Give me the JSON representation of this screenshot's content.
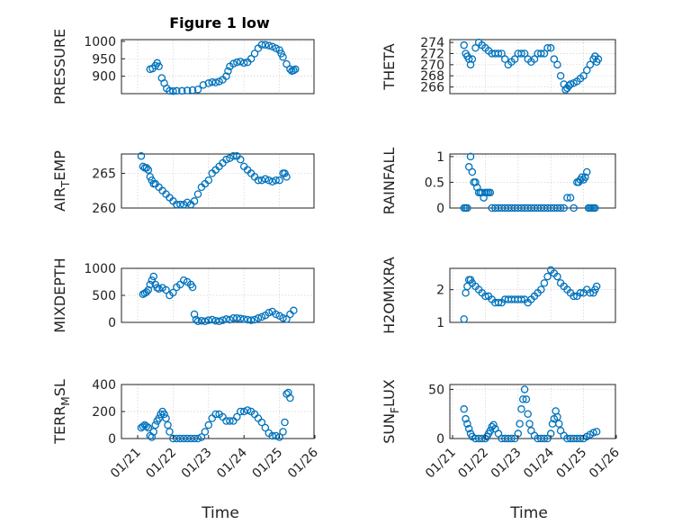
{
  "figure_title": "Figure 1 low",
  "chart_data": [
    {
      "type": "scatter",
      "ylabel": "PRESSURE",
      "ylim": [
        850,
        1005
      ],
      "yticks": [
        "900",
        "950",
        "1000"
      ],
      "x": [
        "01/21",
        "01/22",
        "01/23",
        "01/24",
        "01/25",
        "01/26"
      ],
      "xlim": [
        0,
        5
      ],
      "grid": true,
      "series": [
        {
          "x": [
            0.35,
            0.42,
            0.5,
            0.55,
            0.6,
            0.68,
            0.75,
            0.82,
            0.9,
            1.0,
            1.1,
            1.25,
            1.4,
            1.55,
            1.7,
            1.85,
            2.0,
            2.1,
            2.2,
            2.3,
            2.4,
            2.5,
            2.55,
            2.6,
            2.7,
            2.8,
            2.9,
            3.0,
            3.1,
            3.2,
            3.3,
            3.4,
            3.5,
            3.6,
            3.7,
            3.8,
            3.9,
            4.0,
            4.05,
            4.1,
            4.2,
            4.3,
            4.35,
            4.4,
            4.45
          ],
          "y": [
            920,
            922,
            930,
            938,
            928,
            895,
            880,
            865,
            858,
            857,
            858,
            858,
            859,
            860,
            862,
            875,
            880,
            883,
            882,
            885,
            890,
            900,
            915,
            928,
            936,
            940,
            942,
            938,
            940,
            950,
            965,
            980,
            990,
            990,
            988,
            985,
            980,
            975,
            965,
            955,
            935,
            920,
            915,
            917,
            920
          ]
        }
      ]
    },
    {
      "type": "scatter",
      "ylabel": "THETA",
      "ylim": [
        264.8,
        274.5
      ],
      "yticks": [
        "266",
        "268",
        "270",
        "272",
        "274"
      ],
      "x": [
        "01/21",
        "01/22",
        "01/23",
        "01/24",
        "01/25",
        "01/26"
      ],
      "xlim": [
        0,
        5
      ],
      "grid": true,
      "series": [
        {
          "x": [
            0.35,
            0.4,
            0.45,
            0.5,
            0.55,
            0.6,
            0.7,
            0.8,
            0.9,
            1.0,
            1.1,
            1.2,
            1.3,
            1.4,
            1.5,
            1.6,
            1.7,
            1.8,
            1.9,
            2.0,
            2.1,
            2.2,
            2.3,
            2.4,
            2.5,
            2.6,
            2.7,
            2.8,
            2.9,
            3.0,
            3.1,
            3.2,
            3.3,
            3.4,
            3.45,
            3.5,
            3.55,
            3.6,
            3.7,
            3.8,
            3.9,
            4.0,
            4.1,
            4.2,
            4.3,
            4.35,
            4.4,
            4.45
          ],
          "y": [
            273.5,
            272,
            271.5,
            271,
            270,
            271,
            273,
            274,
            273.5,
            273,
            272.5,
            272,
            272,
            272,
            272,
            271,
            270,
            270.5,
            271,
            272,
            272,
            272,
            271,
            270.5,
            271,
            272,
            272,
            272,
            273,
            273,
            271,
            270,
            268,
            266.5,
            265.5,
            265.8,
            266.2,
            266.5,
            266.7,
            267,
            267.5,
            268,
            269,
            270,
            271,
            271.5,
            270.5,
            271
          ]
        }
      ]
    },
    {
      "type": "scatter",
      "ylabel": "AIR_TEMP",
      "ylim": [
        260,
        267.8
      ],
      "yticks": [
        "260",
        "265"
      ],
      "x": [
        "01/21",
        "01/22",
        "01/23",
        "01/24",
        "01/25",
        "01/26"
      ],
      "xlim": [
        0,
        5
      ],
      "grid": true,
      "series": [
        {
          "x": [
            0.1,
            0.15,
            0.2,
            0.25,
            0.3,
            0.35,
            0.4,
            0.45,
            0.5,
            0.6,
            0.7,
            0.8,
            0.9,
            1.0,
            1.1,
            1.2,
            1.3,
            1.4,
            1.5,
            1.6,
            1.7,
            1.8,
            1.9,
            2.0,
            2.1,
            2.2,
            2.3,
            2.4,
            2.5,
            2.6,
            2.7,
            2.8,
            2.9,
            3.0,
            3.1,
            3.2,
            3.3,
            3.4,
            3.5,
            3.6,
            3.7,
            3.8,
            3.9,
            4.0,
            4.1,
            4.15,
            4.2
          ],
          "y": [
            267.5,
            266,
            265.8,
            265.8,
            265.5,
            264.5,
            264,
            263.5,
            263.5,
            263,
            262.5,
            262,
            261.5,
            261,
            260.5,
            260.5,
            260.5,
            260.8,
            260.5,
            261,
            262,
            263,
            263.5,
            264,
            265,
            265.5,
            266,
            266.5,
            267,
            267.2,
            267.5,
            267.5,
            267,
            266,
            265.5,
            265,
            264.5,
            264,
            264,
            264.2,
            264,
            263.8,
            264,
            264,
            265,
            265,
            264.5
          ]
        }
      ]
    },
    {
      "type": "scatter",
      "ylabel": "RAINFALL",
      "ylim": [
        0,
        1.05
      ],
      "yticks": [
        "0",
        "0.5",
        "1"
      ],
      "x": [
        "01/21",
        "01/22",
        "01/23",
        "01/24",
        "01/25",
        "01/26"
      ],
      "xlim": [
        0,
        5
      ],
      "grid": true,
      "series": [
        {
          "x": [
            0.35,
            0.4,
            0.45,
            0.5,
            0.55,
            0.6,
            0.65,
            0.7,
            0.75,
            0.8,
            0.85,
            0.9,
            0.95,
            1.0,
            1.05,
            1.1,
            1.15,
            1.2,
            1.3,
            1.4,
            1.5,
            1.6,
            1.7,
            1.8,
            1.9,
            2.0,
            2.1,
            2.2,
            2.3,
            2.4,
            2.5,
            2.6,
            2.7,
            2.8,
            2.9,
            3.0,
            3.1,
            3.2,
            3.3,
            3.4,
            3.5,
            3.6,
            3.7,
            3.8,
            3.85,
            3.9,
            3.95,
            4.0,
            4.05,
            4.1,
            4.15,
            4.2,
            4.25,
            4.3,
            4.35
          ],
          "y": [
            0,
            0,
            0,
            0.8,
            1.0,
            0.7,
            0.5,
            0.5,
            0.4,
            0.3,
            0.3,
            0.3,
            0.2,
            0.3,
            0.3,
            0.3,
            0.3,
            0,
            0,
            0,
            0,
            0,
            0,
            0,
            0,
            0,
            0,
            0,
            0,
            0,
            0,
            0,
            0,
            0,
            0,
            0,
            0,
            0,
            0,
            0,
            0.2,
            0.2,
            0,
            0.5,
            0.5,
            0.55,
            0.6,
            0.55,
            0.6,
            0.7,
            0,
            0,
            0,
            0,
            0
          ]
        }
      ]
    },
    {
      "type": "scatter",
      "ylabel": "MIXDEPTH",
      "ylim": [
        0,
        1000
      ],
      "yticks": [
        "0",
        "500",
        "1000"
      ],
      "x": [
        "01/21",
        "01/22",
        "01/23",
        "01/24",
        "01/25",
        "01/26"
      ],
      "xlim": [
        0,
        5
      ],
      "grid": true,
      "series": [
        {
          "x": [
            0.15,
            0.2,
            0.25,
            0.3,
            0.35,
            0.4,
            0.45,
            0.5,
            0.55,
            0.6,
            0.7,
            0.8,
            0.9,
            1.0,
            1.1,
            1.2,
            1.3,
            1.4,
            1.5,
            1.55,
            1.6,
            1.65,
            1.7,
            1.8,
            1.9,
            2.0,
            2.1,
            2.2,
            2.3,
            2.4,
            2.5,
            2.6,
            2.7,
            2.8,
            2.9,
            3.0,
            3.1,
            3.2,
            3.3,
            3.4,
            3.5,
            3.6,
            3.7,
            3.8,
            3.9,
            4.0,
            4.1,
            4.2,
            4.3,
            4.4
          ],
          "y": [
            520,
            540,
            560,
            600,
            700,
            780,
            850,
            700,
            640,
            620,
            640,
            600,
            500,
            550,
            650,
            700,
            780,
            750,
            700,
            650,
            150,
            50,
            20,
            30,
            20,
            40,
            50,
            30,
            20,
            40,
            60,
            50,
            80,
            80,
            70,
            60,
            50,
            40,
            50,
            80,
            100,
            130,
            180,
            200,
            150,
            120,
            80,
            60,
            150,
            220
          ]
        }
      ]
    },
    {
      "type": "scatter",
      "ylabel": "H2OMIXRA",
      "ylim": [
        1,
        2.65
      ],
      "yticks": [
        "1",
        "2"
      ],
      "x": [
        "01/21",
        "01/22",
        "01/23",
        "01/24",
        "01/25",
        "01/26"
      ],
      "xlim": [
        0,
        5
      ],
      "grid": true,
      "series": [
        {
          "x": [
            0.35,
            0.4,
            0.45,
            0.5,
            0.55,
            0.6,
            0.7,
            0.8,
            0.9,
            1.0,
            1.1,
            1.2,
            1.3,
            1.4,
            1.5,
            1.6,
            1.7,
            1.8,
            1.9,
            2.0,
            2.1,
            2.2,
            2.3,
            2.4,
            2.5,
            2.6,
            2.7,
            2.8,
            2.9,
            3.0,
            3.1,
            3.2,
            3.3,
            3.4,
            3.5,
            3.6,
            3.7,
            3.8,
            3.9,
            4.0,
            4.1,
            4.2,
            4.3,
            4.35,
            4.4
          ],
          "y": [
            1.1,
            1.9,
            2.1,
            2.3,
            2.3,
            2.2,
            2.1,
            2.0,
            1.9,
            1.8,
            1.8,
            1.7,
            1.6,
            1.6,
            1.6,
            1.7,
            1.7,
            1.7,
            1.7,
            1.7,
            1.7,
            1.7,
            1.6,
            1.7,
            1.8,
            1.9,
            2.0,
            2.2,
            2.4,
            2.6,
            2.5,
            2.4,
            2.2,
            2.1,
            2.0,
            1.9,
            1.8,
            1.8,
            1.9,
            1.9,
            2.0,
            1.9,
            1.9,
            2.0,
            2.1
          ]
        }
      ]
    },
    {
      "type": "scatter",
      "ylabel": "TERR_MSL",
      "ylim": [
        0,
        400
      ],
      "yticks": [
        "0",
        "200",
        "400"
      ],
      "x": [
        "01/21",
        "01/22",
        "01/23",
        "01/24",
        "01/25",
        "01/26"
      ],
      "xlim": [
        0,
        5
      ],
      "grid": true,
      "series": [
        {
          "x": [
            0.1,
            0.15,
            0.2,
            0.25,
            0.3,
            0.35,
            0.4,
            0.45,
            0.5,
            0.55,
            0.6,
            0.65,
            0.7,
            0.75,
            0.8,
            0.85,
            0.9,
            1.0,
            1.1,
            1.2,
            1.3,
            1.4,
            1.5,
            1.6,
            1.7,
            1.8,
            1.9,
            2.0,
            2.1,
            2.2,
            2.3,
            2.4,
            2.5,
            2.6,
            2.7,
            2.8,
            2.9,
            3.0,
            3.1,
            3.2,
            3.3,
            3.4,
            3.5,
            3.6,
            3.7,
            3.8,
            3.9,
            4.0,
            4.1,
            4.15,
            4.2,
            4.25,
            4.3
          ],
          "y": [
            80,
            90,
            100,
            90,
            80,
            20,
            10,
            50,
            100,
            130,
            150,
            180,
            200,
            180,
            150,
            100,
            50,
            0,
            0,
            0,
            0,
            0,
            0,
            0,
            0,
            10,
            50,
            100,
            150,
            180,
            180,
            160,
            130,
            130,
            130,
            160,
            200,
            200,
            210,
            200,
            180,
            150,
            120,
            80,
            40,
            20,
            20,
            10,
            50,
            120,
            330,
            340,
            300
          ]
        }
      ]
    },
    {
      "type": "scatter",
      "ylabel": "SUN_FLUX",
      "ylim": [
        0,
        55
      ],
      "yticks": [
        "0",
        "50"
      ],
      "x": [
        "01/21",
        "01/22",
        "01/23",
        "01/24",
        "01/25",
        "01/26"
      ],
      "xlim": [
        0,
        5
      ],
      "grid": true,
      "series": [
        {
          "x": [
            0.35,
            0.4,
            0.45,
            0.5,
            0.55,
            0.6,
            0.7,
            0.8,
            0.9,
            1.0,
            1.05,
            1.1,
            1.15,
            1.2,
            1.25,
            1.3,
            1.4,
            1.5,
            1.6,
            1.7,
            1.8,
            1.9,
            2.0,
            2.05,
            2.1,
            2.15,
            2.2,
            2.25,
            2.3,
            2.35,
            2.4,
            2.5,
            2.6,
            2.7,
            2.8,
            2.9,
            3.0,
            3.05,
            3.1,
            3.15,
            3.2,
            3.25,
            3.3,
            3.4,
            3.5,
            3.6,
            3.7,
            3.8,
            3.9,
            4.0,
            4.1,
            4.2,
            4.3,
            4.4
          ],
          "y": [
            30,
            20,
            15,
            10,
            5,
            2,
            0,
            0,
            0,
            0,
            2,
            5,
            8,
            12,
            14,
            10,
            5,
            0,
            0,
            0,
            0,
            0,
            5,
            15,
            30,
            40,
            50,
            40,
            25,
            15,
            8,
            3,
            0,
            0,
            0,
            0,
            5,
            15,
            20,
            28,
            22,
            15,
            8,
            3,
            0,
            0,
            0,
            0,
            0,
            0,
            2,
            4,
            6,
            7
          ]
        }
      ]
    }
  ],
  "xlabel": "Time"
}
